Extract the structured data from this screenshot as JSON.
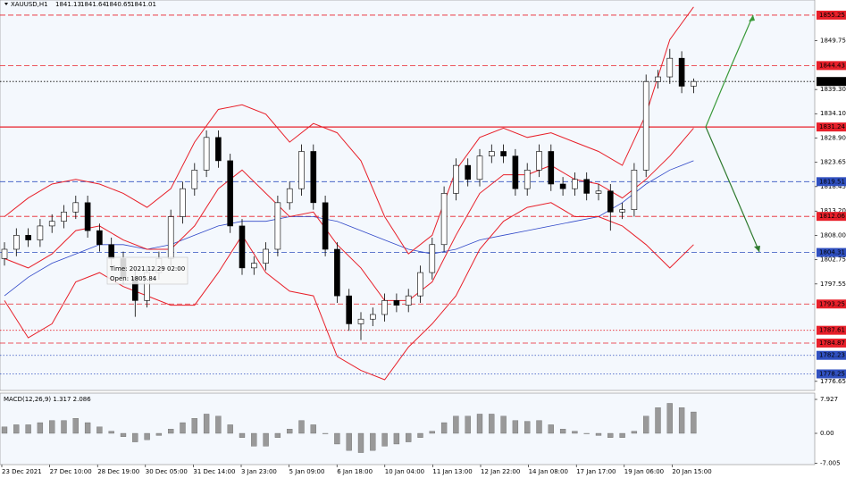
{
  "chart_data": {
    "type": "candlestick",
    "symbol": "XAUUSD,H1",
    "header_values": [
      "1841.13",
      "1841.64",
      "1840.65",
      "1841.01"
    ],
    "ylim": [
      1774.7,
      1858.5
    ],
    "yticks": [
      1849.75,
      {
        "value": 1839.3,
        "label": "1839.30"
      },
      {
        "value": 1834.1,
        "label": "1834.10"
      },
      {
        "value": 1828.9,
        "label": "1828.90"
      },
      1823.65,
      1818.45,
      {
        "value": 1813.2,
        "label": "1813.20"
      },
      {
        "value": 1808,
        "label": "1808.00"
      },
      1802.75,
      1797.55,
      1776.65
    ],
    "levels": [
      {
        "value": 1855.25,
        "color": "#e8202a",
        "style": "dashed"
      },
      {
        "value": 1844.43,
        "color": "#e8202a",
        "style": "dashed"
      },
      {
        "value": 1841.01,
        "color": "#000000",
        "style": "dotted"
      },
      {
        "value": 1831.24,
        "color": "#e8202a",
        "style": "solid"
      },
      {
        "value": 1819.51,
        "color": "#3050c0",
        "style": "dashed"
      },
      {
        "value": 1812.06,
        "color": "#e8202a",
        "style": "dashed"
      },
      {
        "value": 1804.31,
        "color": "#3050c0",
        "style": "dashed"
      },
      {
        "value": 1793.25,
        "color": "#e8202a",
        "style": "dashed"
      },
      {
        "value": 1787.61,
        "color": "#e8202a",
        "style": "dotted"
      },
      {
        "value": 1784.87,
        "color": "#e8202a",
        "style": "dashed"
      },
      {
        "value": 1782.23,
        "color": "#3050c0",
        "style": "dotted"
      },
      {
        "value": 1778.25,
        "color": "#3050c0",
        "style": "dotted"
      }
    ],
    "candles": [
      [
        1803,
        1806.5,
        1801.5,
        1805
      ],
      [
        1805,
        1809.5,
        1803.5,
        1808
      ],
      [
        1808,
        1809.5,
        1805.5,
        1807
      ],
      [
        1807,
        1811.5,
        1805.5,
        1810
      ],
      [
        1810,
        1812.5,
        1808.5,
        1811
      ],
      [
        1811,
        1814.5,
        1809.5,
        1813
      ],
      [
        1813,
        1816.5,
        1811.5,
        1815
      ],
      [
        1815,
        1816.5,
        1807.5,
        1809
      ],
      [
        1809,
        1810.5,
        1804.5,
        1806
      ],
      [
        1806,
        1807.5,
        1801.5,
        1803
      ],
      [
        1803,
        1804.5,
        1797.5,
        1799
      ],
      [
        1799,
        1800.5,
        1790.5,
        1794
      ],
      [
        1794,
        1801.5,
        1792.5,
        1800
      ],
      [
        1800,
        1804.5,
        1798.5,
        1803
      ],
      [
        1803,
        1813.5,
        1801.5,
        1812
      ],
      [
        1812,
        1819.5,
        1810.5,
        1818
      ],
      [
        1818,
        1823.5,
        1816.5,
        1822
      ],
      [
        1822,
        1830.5,
        1820.5,
        1829
      ],
      [
        1829,
        1830.5,
        1822.5,
        1824
      ],
      [
        1824,
        1825.5,
        1808.5,
        1810
      ],
      [
        1810,
        1811.5,
        1799.5,
        1801
      ],
      [
        1801,
        1803.5,
        1799.5,
        1802
      ],
      [
        1802,
        1806.5,
        1800.5,
        1805
      ],
      [
        1805,
        1816.5,
        1803.5,
        1815
      ],
      [
        1815,
        1819.5,
        1813.5,
        1818
      ],
      [
        1818,
        1827.5,
        1816.5,
        1826
      ],
      [
        1826,
        1827.5,
        1813.5,
        1815
      ],
      [
        1815,
        1816.5,
        1803.5,
        1805
      ],
      [
        1805,
        1806.5,
        1793.5,
        1795
      ],
      [
        1795,
        1796.5,
        1787.5,
        1789
      ],
      [
        1789,
        1791.5,
        1785.5,
        1790
      ],
      [
        1790,
        1792.5,
        1788.5,
        1791
      ],
      [
        1791,
        1795.5,
        1789.5,
        1794
      ],
      [
        1794,
        1795.5,
        1791.5,
        1793
      ],
      [
        1793,
        1796.5,
        1791.5,
        1795
      ],
      [
        1795,
        1801.5,
        1793.5,
        1800
      ],
      [
        1800,
        1807.5,
        1798.5,
        1806
      ],
      [
        1806,
        1818.5,
        1804.5,
        1817
      ],
      [
        1817,
        1824.5,
        1815.5,
        1823
      ],
      [
        1823,
        1824.5,
        1818.5,
        1820
      ],
      [
        1820,
        1826.5,
        1818.5,
        1825
      ],
      [
        1825,
        1827.5,
        1823.5,
        1826
      ],
      [
        1826,
        1827.5,
        1823.5,
        1825
      ],
      [
        1825,
        1826.5,
        1816.5,
        1818
      ],
      [
        1818,
        1823.5,
        1816.5,
        1822
      ],
      [
        1822,
        1827.5,
        1820.5,
        1826
      ],
      [
        1826,
        1827.5,
        1817.5,
        1819
      ],
      [
        1819,
        1820.5,
        1816.5,
        1818
      ],
      [
        1818,
        1821.5,
        1816.5,
        1820
      ],
      [
        1820,
        1821.5,
        1815.5,
        1817
      ],
      [
        1817,
        1819,
        1815.5,
        1817.5
      ],
      [
        1817.5,
        1819,
        1809,
        1813
      ],
      [
        1813,
        1815,
        1811.5,
        1813.5
      ],
      [
        1813.5,
        1823.5,
        1812,
        1822
      ],
      [
        1822,
        1842.5,
        1820.5,
        1841
      ],
      [
        1841,
        1843.5,
        1839.5,
        1842
      ],
      [
        1842,
        1848,
        1840.5,
        1846
      ],
      [
        1846,
        1847.5,
        1838.5,
        1840
      ],
      [
        1840,
        1841.64,
        1838.5,
        1841.01
      ]
    ],
    "band_x": [
      0,
      2,
      4,
      6,
      8,
      10,
      12,
      14,
      16,
      18,
      20,
      22,
      24,
      26,
      28,
      30,
      32,
      34,
      36,
      38,
      40,
      42,
      44,
      46,
      48,
      50,
      52,
      54,
      56,
      58
    ],
    "band_color": "#e8202a",
    "ma_color": "#3048c8",
    "upper": [
      1812,
      1816,
      1819,
      1820,
      1819,
      1817,
      1814,
      1818,
      1828,
      1835,
      1836,
      1834,
      1828,
      1832,
      1830,
      1824,
      1812,
      1804,
      1808,
      1822,
      1829,
      1831,
      1829,
      1830,
      1828,
      1826,
      1823,
      1834,
      1850,
      1857
    ],
    "middle": [
      1803,
      1801,
      1804,
      1809,
      1810,
      1807,
      1805,
      1805,
      1810,
      1818,
      1822,
      1817,
      1812,
      1813,
      1806,
      1801,
      1794,
      1794,
      1798,
      1808,
      1817,
      1821,
      1821,
      1823,
      1820,
      1819,
      1816,
      1820,
      1825,
      1831
    ],
    "lower": [
      1794,
      1786,
      1789,
      1798,
      1800,
      1797,
      1795,
      1793,
      1793,
      1800,
      1808,
      1800,
      1796,
      1795,
      1782,
      1779,
      1777,
      1784,
      1789,
      1795,
      1805,
      1811,
      1814,
      1815,
      1812,
      1812,
      1810,
      1806,
      1801,
      1806
    ],
    "ma": [
      1795,
      1799,
      1802,
      1804,
      1806,
      1806,
      1805,
      1806,
      1808,
      1810,
      1811,
      1811,
      1812,
      1812,
      1811,
      1809,
      1807,
      1805,
      1804,
      1805,
      1807,
      1808,
      1809,
      1810,
      1811,
      1812,
      1815,
      1819,
      1822,
      1824
    ],
    "tooltip": [
      "Time: 2021.12.29 02:00",
      "Open: 1805.84"
    ],
    "macd_label": "MACD(12,26,9) 1.317 2.086",
    "macd_ylim": [
      -7.3,
      9.39
    ],
    "macd_yticks": [
      7.927,
      {
        "value": 0,
        "label": "0.00"
      },
      -7.005
    ],
    "macd": [
      1.5,
      2,
      2,
      2.5,
      3,
      3,
      3.5,
      2.5,
      1.5,
      0.5,
      -0.8,
      -2,
      -1.5,
      -0.5,
      1,
      2.5,
      3.5,
      4.5,
      4,
      2,
      -1,
      -3,
      -3,
      -1,
      1,
      3,
      2,
      0,
      -2.5,
      -4,
      -4.5,
      -4,
      -3,
      -2.5,
      -2,
      -1,
      0.5,
      2.5,
      4,
      4,
      4.5,
      4.5,
      4,
      3,
      2.8,
      3,
      2,
      1,
      0.5,
      0,
      -0.5,
      -1,
      -1,
      0.5,
      4,
      6,
      7,
      6,
      5
    ],
    "x_labels": [
      "23 Dec 2021",
      "27 Dec 10:00",
      "28 Dec 19:00",
      "30 Dec 05:00",
      "31 Dec 14:00",
      "3 Jan 23:00",
      "5 Jan 09:00",
      "6 Jan 18:00",
      "10 Jan 04:00",
      "11 Jan 13:00",
      "12 Jan 22:00",
      "14 Jan 08:00",
      "17 Jan 17:00",
      "19 Jan 06:00",
      "20 Jan 15:00"
    ]
  }
}
